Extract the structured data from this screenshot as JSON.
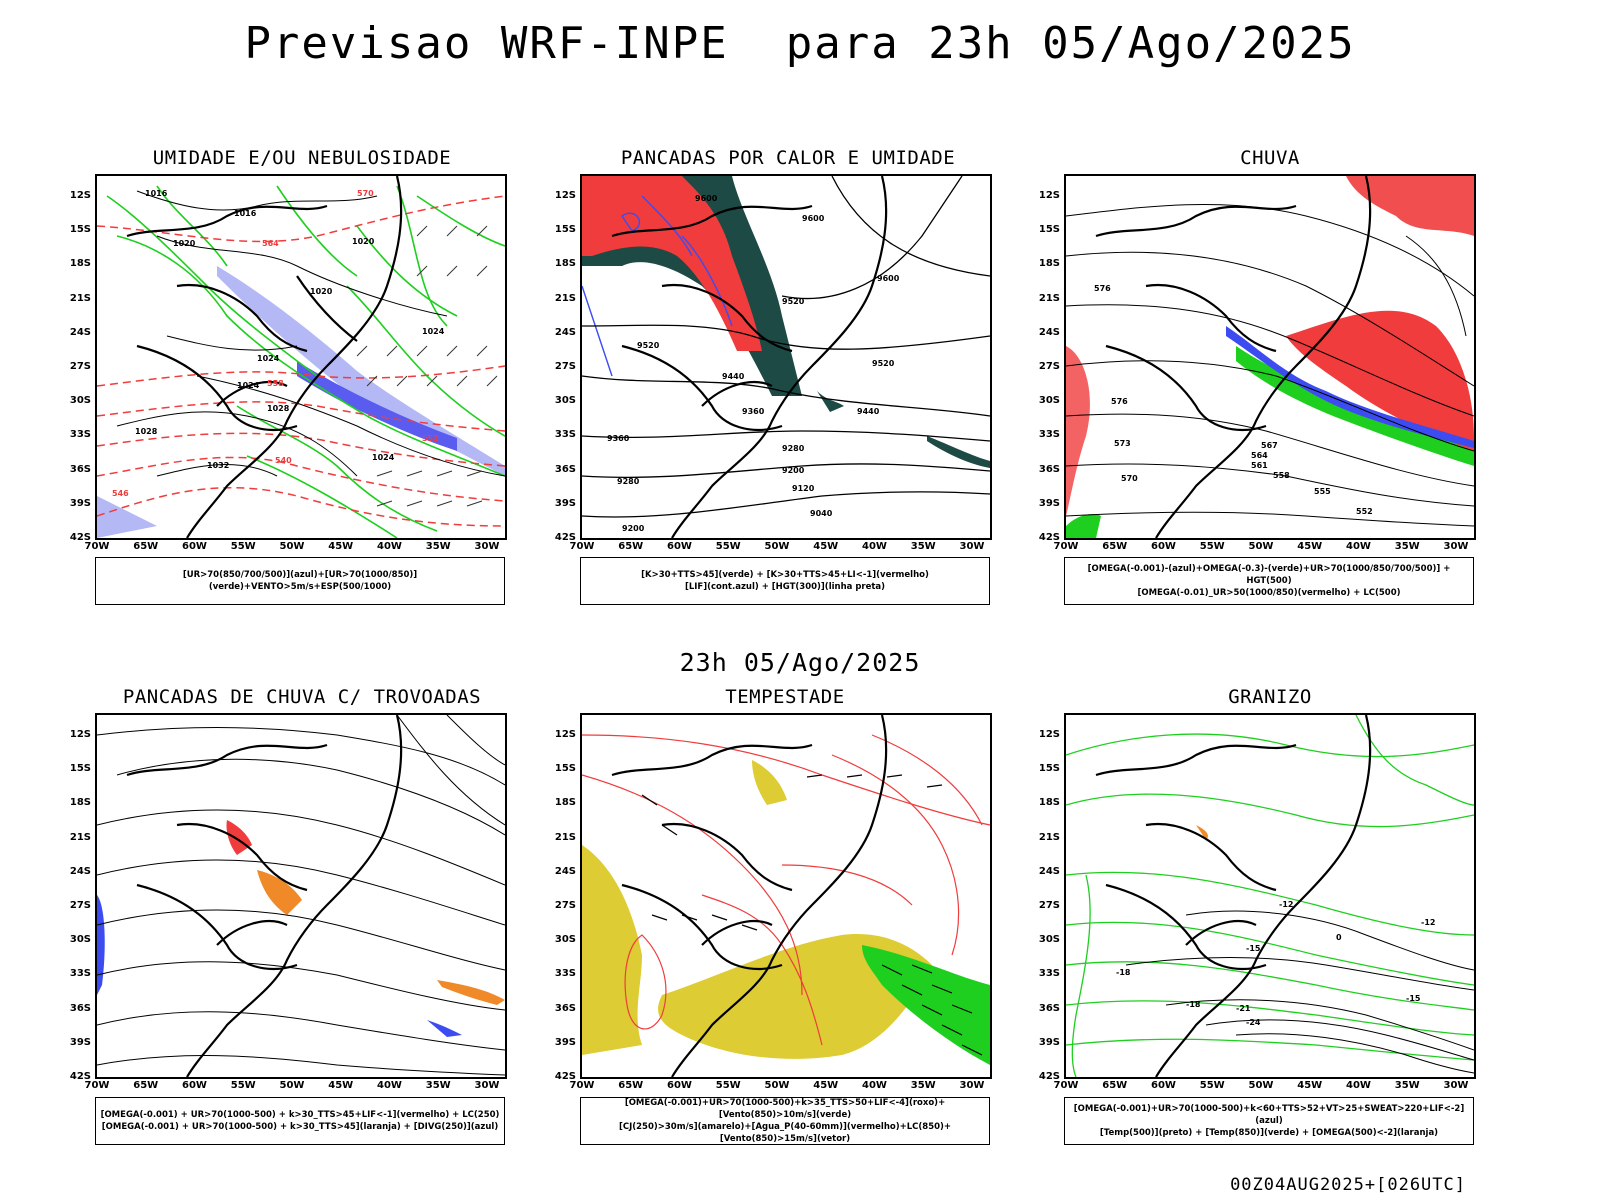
{
  "header": {
    "title": "Previsao WRF-INPE  para 23h 05/Ago/2025",
    "subtitle": "23h 05/Ago/2025",
    "footer": "00Z04AUG2025+[026UTC]"
  },
  "axes": {
    "lat_labels": [
      "12S",
      "15S",
      "18S",
      "21S",
      "24S",
      "27S",
      "30S",
      "33S",
      "36S",
      "39S",
      "42S"
    ],
    "lon_labels": [
      "70W",
      "65W",
      "60W",
      "55W",
      "50W",
      "45W",
      "40W",
      "35W",
      "30W"
    ]
  },
  "panels": [
    {
      "title": "UMIDADE E/OU NEBULOSIDADE",
      "legend": [
        "[UR>70(850/700/500)](azul)+[UR>70(1000/850)](verde)+VENTO>5m/s+ESP(500/1000)"
      ],
      "contour_labels": [
        "1016",
        "1016",
        "1020",
        "1020",
        "1020",
        "1024",
        "1024",
        "1024",
        "1024",
        "1028",
        "1028",
        "1032",
        "570",
        "564",
        "558",
        "552",
        "546",
        "540"
      ]
    },
    {
      "title": "PANCADAS POR CALOR E UMIDADE",
      "legend": [
        "[K>30+TTS>45](verde) + [K>30+TTS>45+LI<-1](vermelho)",
        "[LIF](cont.azul) + [HGT(300)](linha preta)"
      ],
      "contour_labels": [
        "9600",
        "9600",
        "9600",
        "9520",
        "9520",
        "9520",
        "9440",
        "9440",
        "9360",
        "9360",
        "9280",
        "9280",
        "9200",
        "9200",
        "9120",
        "9040"
      ]
    },
    {
      "title": "CHUVA",
      "legend": [
        "[OMEGA(-0.001)-(azul)+OMEGA(-0.3)-(verde)+UR>70(1000/850/700/500)] + HGT(500)",
        "[OMEGA(-0.01)_UR>50(1000/850)(vermelho) + LC(500)"
      ],
      "contour_labels": [
        "576",
        "576",
        "573",
        "570",
        "567",
        "564",
        "561",
        "558",
        "555",
        "552"
      ]
    },
    {
      "title": "PANCADAS DE CHUVA C/ TROVOADAS",
      "legend": [
        "[OMEGA(-0.001) + UR>70(1000-500) + k>30_TTS>45+LIF<-1](vermelho) + LC(250)",
        "[OMEGA(-0.001) + UR>70(1000-500) + k>30_TTS>45](laranja) + [DIVG(250)](azul)"
      ],
      "contour_labels": []
    },
    {
      "title": "TEMPESTADE",
      "legend": [
        "[OMEGA(-0.001)+UR>70(1000-500)+k>35_TTS>50+LIF<-4](roxo)+[Vento(850)>10m/s](verde)",
        "[CJ(250)>30m/s](amarelo)+[Agua_P(40-60mm)](vermelho)+LC(850)+[Vento(850)>15m/s](vetor)"
      ],
      "contour_labels": []
    },
    {
      "title": "GRANIZO",
      "legend": [
        "[OMEGA(-0.001)+UR>70(1000-500)+k<60+TTS>52+VT>25+SWEAT>220+LIF<-2](azul)",
        "[Temp(500)](preto) + [Temp(850)](verde) + [OMEGA(500)<-2](laranja)"
      ],
      "contour_labels": [
        "-12",
        "-12",
        "-15",
        "-15",
        "-18",
        "-18",
        "-21",
        "-24",
        "0"
      ]
    }
  ],
  "colors": {
    "red": "#f03c3c",
    "green": "#1fcf1f",
    "blue": "#3c4cf0",
    "lightblue": "#b4b8f4",
    "darkgreen": "#1e4a46",
    "yellow": "#ddcc33",
    "orange": "#f08a28"
  }
}
